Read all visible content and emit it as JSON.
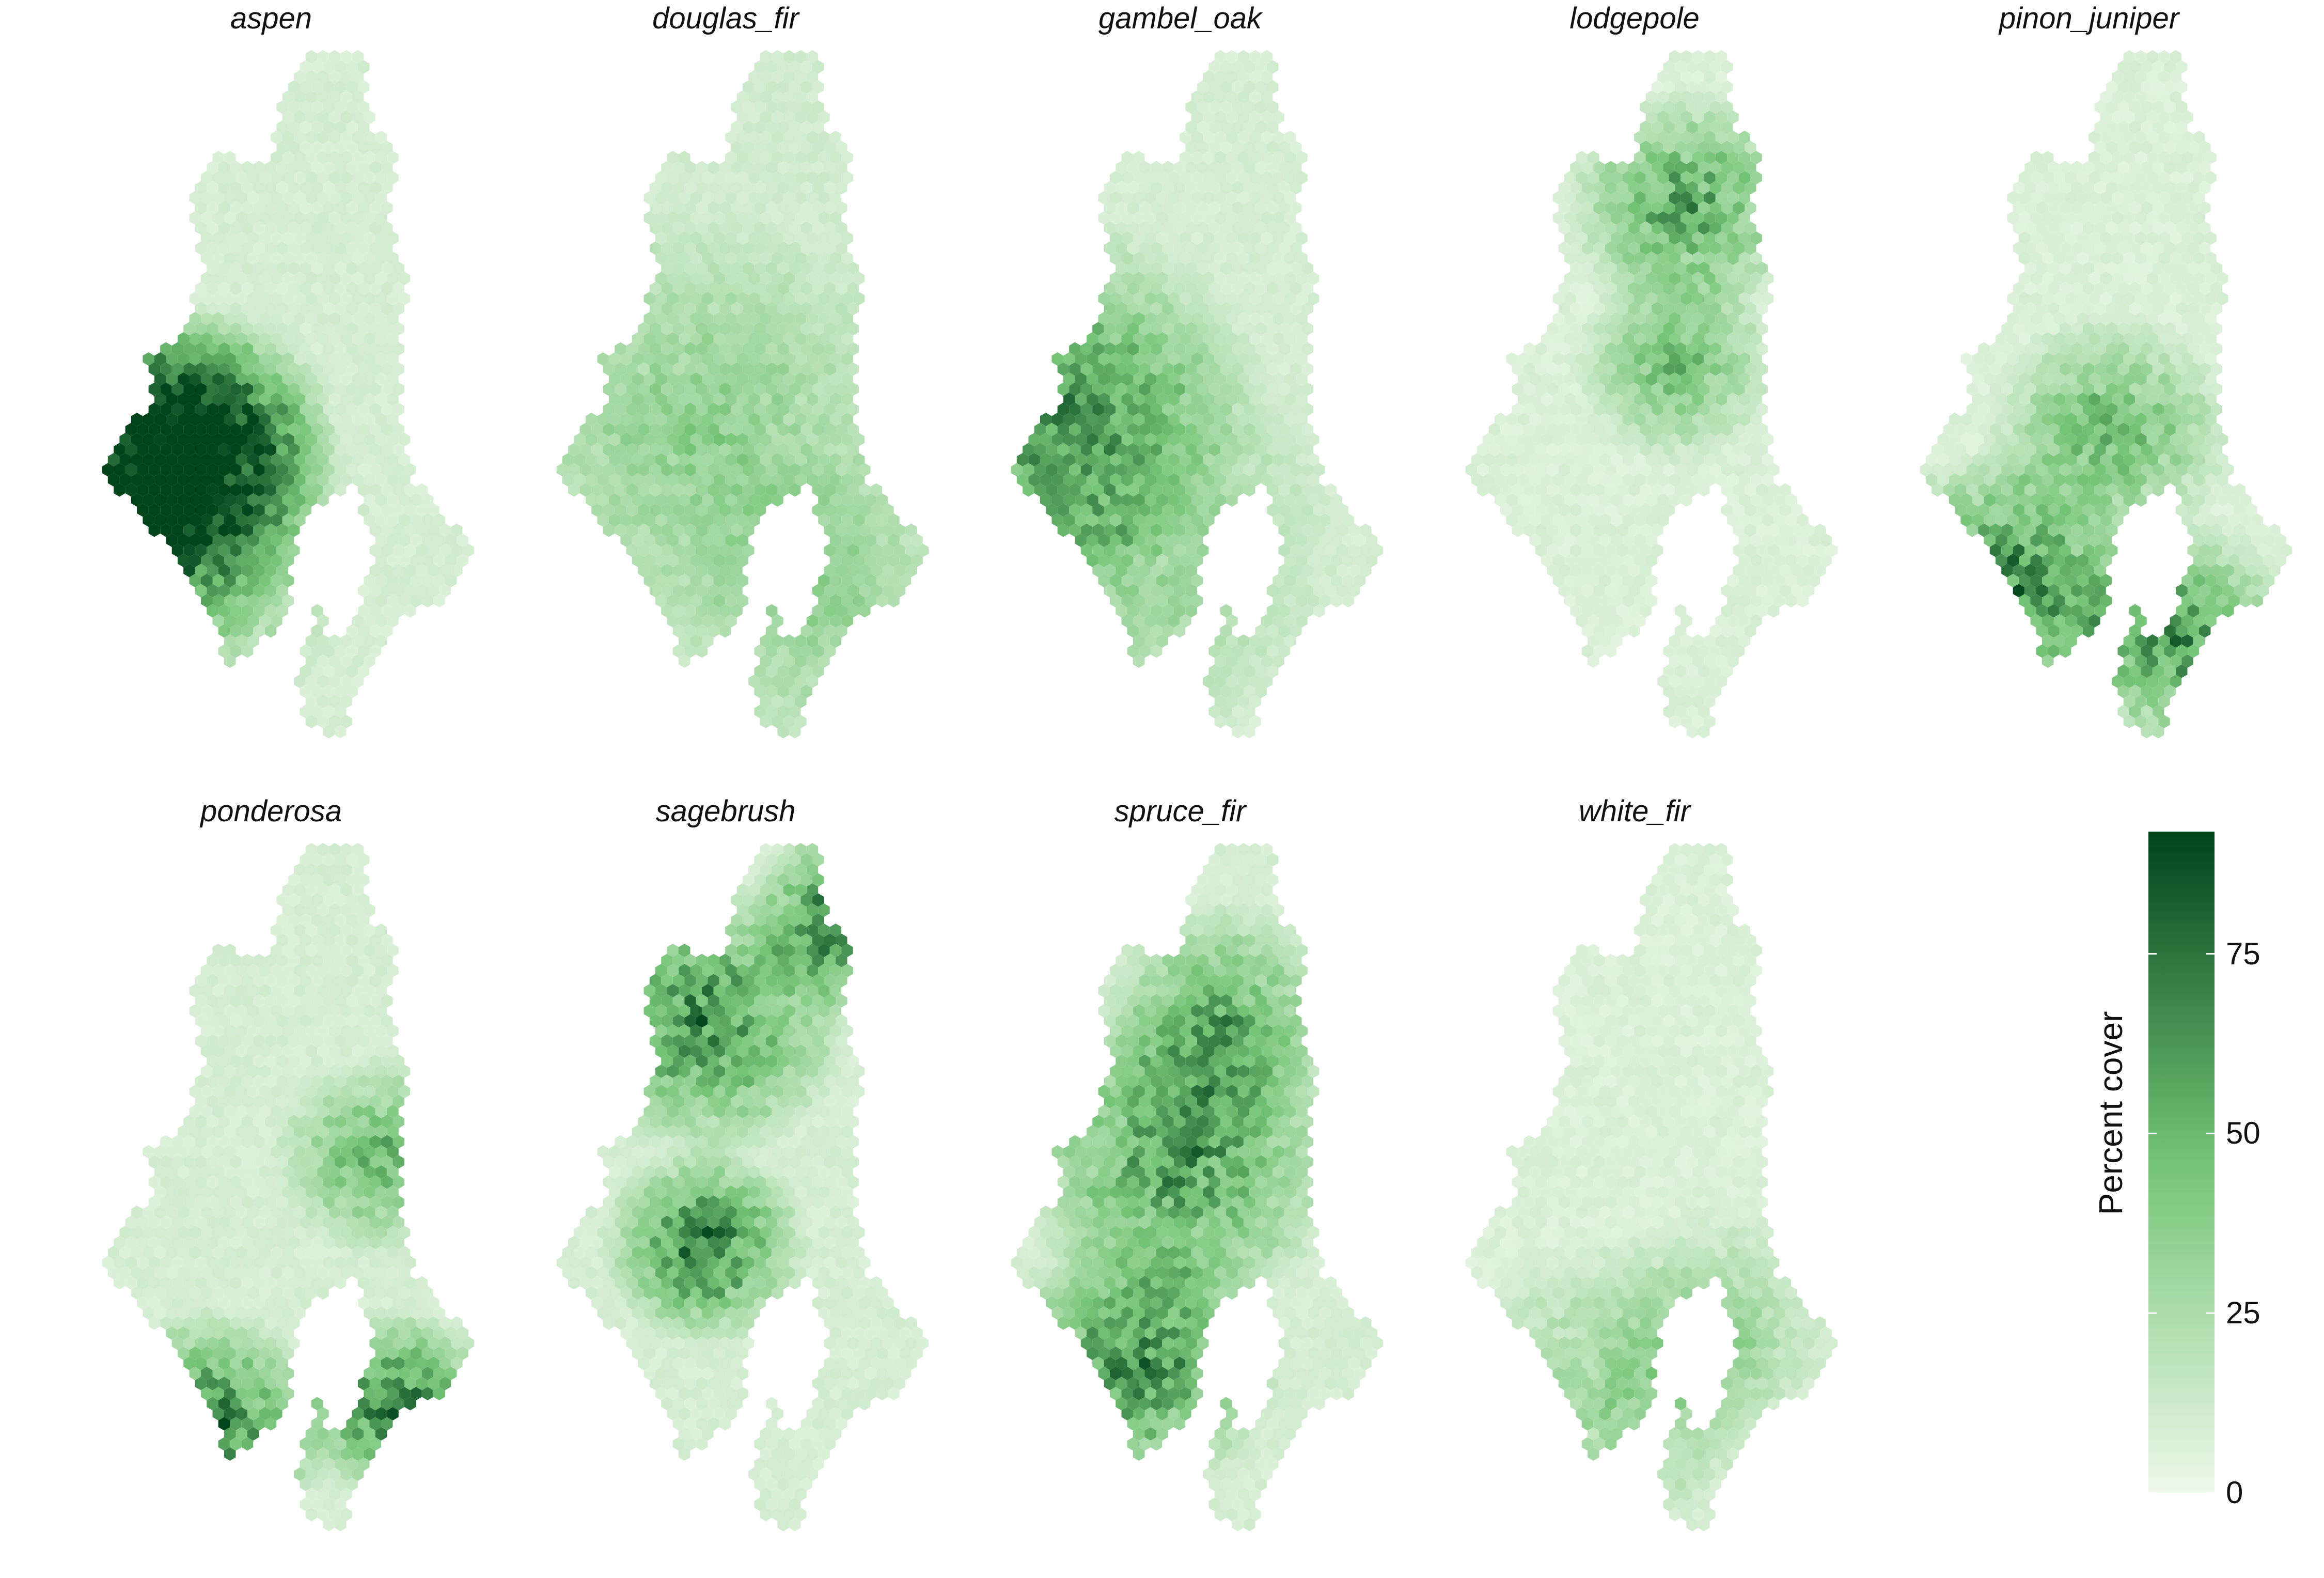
{
  "panels": [
    {
      "name": "aspen",
      "pattern": {
        "bands": [
          [
            0.22,
            0.62,
            0.45,
            0.9
          ],
          [
            0.35,
            0.55,
            0.32,
            0.6
          ],
          [
            0.18,
            0.7,
            0.55,
            0.55
          ]
        ],
        "base": 6
      }
    },
    {
      "name": "douglas_fir",
      "pattern": {
        "bands": [
          [
            0.45,
            0.55,
            0.55,
            0.35
          ],
          [
            0.72,
            0.8,
            0.4,
            0.3
          ]
        ],
        "base": 8
      }
    },
    {
      "name": "gambel_oak",
      "pattern": {
        "bands": [
          [
            0.25,
            0.5,
            0.45,
            0.55
          ],
          [
            0.3,
            0.7,
            0.6,
            0.4
          ]
        ],
        "base": 6
      }
    },
    {
      "name": "lodgepole",
      "pattern": {
        "bands": [
          [
            0.62,
            0.22,
            0.3,
            0.7
          ],
          [
            0.6,
            0.45,
            0.25,
            0.55
          ]
        ],
        "base": 4
      }
    },
    {
      "name": "pinon_juniper",
      "pattern": {
        "bands": [
          [
            0.3,
            0.78,
            0.35,
            0.9
          ],
          [
            0.7,
            0.85,
            0.3,
            0.8
          ],
          [
            0.55,
            0.55,
            0.3,
            0.6
          ]
        ],
        "base": 4
      }
    },
    {
      "name": "ponderosa",
      "pattern": {
        "bands": [
          [
            0.35,
            0.85,
            0.3,
            0.9
          ],
          [
            0.8,
            0.82,
            0.25,
            0.85
          ],
          [
            0.75,
            0.45,
            0.25,
            0.6
          ]
        ],
        "base": 6
      }
    },
    {
      "name": "sagebrush",
      "pattern": {
        "bands": [
          [
            0.8,
            0.1,
            0.25,
            1.0
          ],
          [
            0.45,
            0.25,
            0.35,
            0.8
          ],
          [
            0.45,
            0.58,
            0.25,
            0.9
          ]
        ],
        "base": 6
      }
    },
    {
      "name": "spruce_fir",
      "pattern": {
        "bands": [
          [
            0.4,
            0.75,
            0.35,
            0.8
          ],
          [
            0.5,
            0.45,
            0.4,
            0.75
          ],
          [
            0.6,
            0.25,
            0.3,
            0.6
          ]
        ],
        "base": 6
      }
    },
    {
      "name": "white_fir",
      "pattern": {
        "bands": [
          [
            0.45,
            0.8,
            0.4,
            0.35
          ],
          [
            0.7,
            0.7,
            0.3,
            0.3
          ]
        ],
        "base": 4
      }
    }
  ],
  "legend": {
    "title": "Percent cover",
    "min": 0,
    "max": 92,
    "ticks": [
      {
        "label": "0",
        "value": 0
      },
      {
        "label": "25",
        "value": 25
      },
      {
        "label": "50",
        "value": 50
      },
      {
        "label": "75",
        "value": 75
      }
    ],
    "colors": {
      "low": "#edf8e9",
      "mid": "#74c476",
      "high": "#00441b"
    }
  },
  "chart_data": {
    "type": "heatmap",
    "facets": [
      "aspen",
      "douglas_fir",
      "gambel_oak",
      "lodgepole",
      "pinon_juniper",
      "ponderosa",
      "sagebrush",
      "spruce_fir",
      "white_fir"
    ],
    "colorbar": {
      "label": "Percent cover",
      "range": [
        0,
        92
      ],
      "ticks": [
        0,
        25,
        50,
        75
      ],
      "palette": "Greens"
    },
    "legend_placement": "right"
  }
}
